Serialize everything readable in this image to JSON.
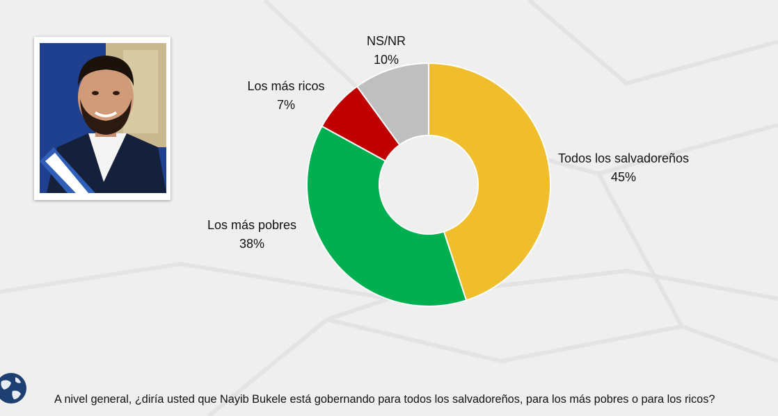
{
  "question": "A nivel general, ¿diría usted que Nayib Bukele está gobernando para todos los salvadoreños, para los más pobres o para los ricos?",
  "portrait": {
    "icon": "portrait-photo"
  },
  "globe": {
    "icon": "globe-icon"
  },
  "chart_data": {
    "type": "pie",
    "donut": true,
    "title": "",
    "slices": [
      {
        "label": "Todos los salvadoreños",
        "value": 45,
        "value_label": "45%",
        "color": "#F0BE2C"
      },
      {
        "label": "Los más pobres",
        "value": 38,
        "value_label": "38%",
        "color": "#00B050"
      },
      {
        "label": "Los más ricos",
        "value": 7,
        "value_label": "7%",
        "color": "#C00000"
      },
      {
        "label": "NS/NR",
        "value": 10,
        "value_label": "10%",
        "color": "#BFBFBF"
      }
    ]
  }
}
